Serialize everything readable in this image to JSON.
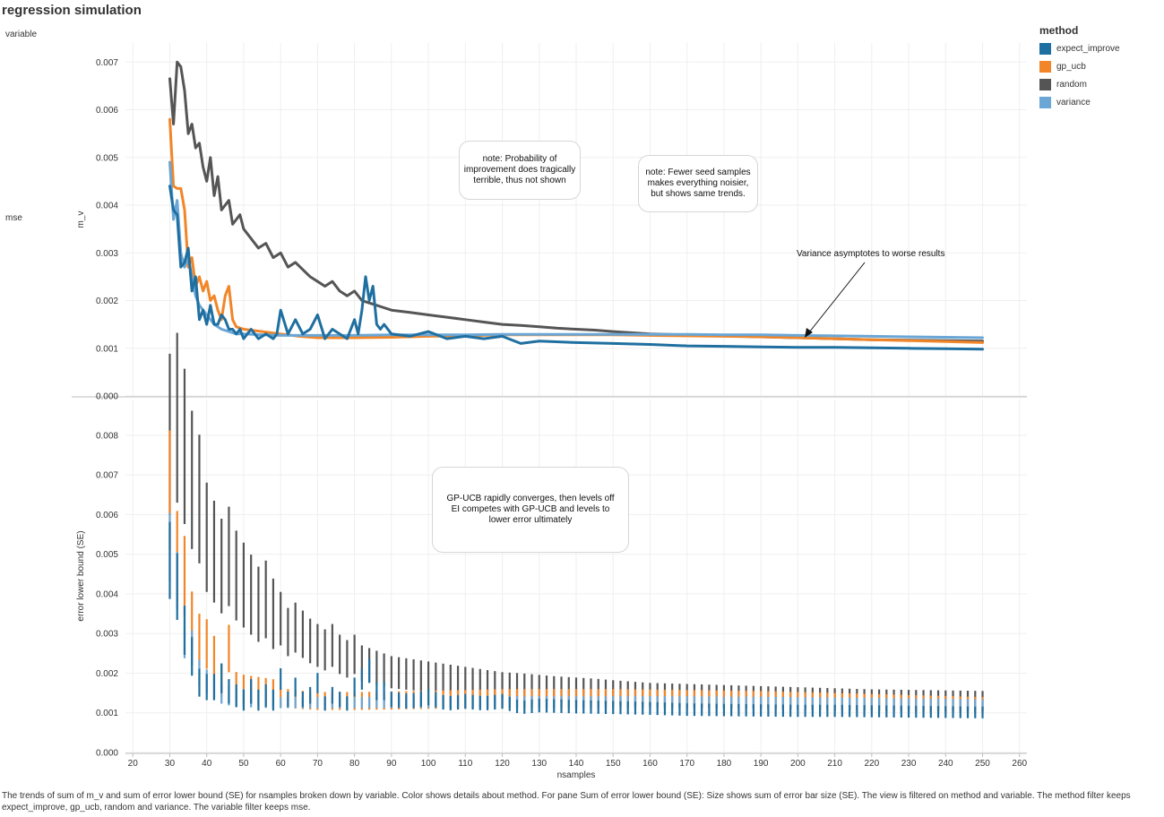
{
  "title": "regression simulation",
  "column_header": "variable",
  "row_label": "mse",
  "legend": {
    "title": "method",
    "items": [
      {
        "label": "expect_improve",
        "color": "#1f6fa0"
      },
      {
        "label": "gp_ucb",
        "color": "#f28527"
      },
      {
        "label": "random",
        "color": "#555555"
      },
      {
        "label": "variance",
        "color": "#6aa6d6"
      }
    ]
  },
  "caption": "The trends of sum of m_v and sum of error lower bound (SE) for nsamples broken down by variable.  Color shows details about method.  For pane Sum of error lower bound (SE):  Size shows sum of error bar size (SE). The view is filtered on method and variable. The method filter keeps expect_improve, gp_ucb, random and variance. The variable filter keeps mse.",
  "annotations": {
    "note1": "note: Probability of improvement does tragically terrible, thus not shown",
    "note2": "note: Fewer seed samples makes everything noisier, but shows same trends.",
    "note3": "Variance asymptotes to worse results",
    "note4": "GP-UCB rapidly converges, then levels off EI competes with GP-UCB and levels to lower error ultimately"
  },
  "chart_data": [
    {
      "type": "line",
      "ylabel": "m_v",
      "xlabel": "",
      "xlim": [
        18,
        262
      ],
      "ylim": [
        0,
        0.0074
      ],
      "grid": true,
      "x_ticks": [
        20,
        30,
        40,
        50,
        60,
        70,
        80,
        90,
        100,
        110,
        120,
        130,
        140,
        150,
        160,
        170,
        180,
        190,
        200,
        210,
        220,
        230,
        240,
        250,
        260
      ],
      "y_ticks": [
        "0.000",
        "0.001",
        "0.002",
        "0.003",
        "0.004",
        "0.005",
        "0.006",
        "0.007"
      ],
      "y_tick_values": [
        0,
        0.001,
        0.002,
        0.003,
        0.004,
        0.005,
        0.006,
        0.007
      ],
      "series": [
        {
          "name": "random",
          "color": "#555555",
          "x": [
            30,
            31,
            32,
            33,
            34,
            35,
            36,
            37,
            38,
            39,
            40,
            41,
            42,
            43,
            44,
            45,
            46,
            47,
            48,
            49,
            50,
            52,
            54,
            56,
            58,
            60,
            62,
            64,
            66,
            68,
            70,
            72,
            74,
            76,
            78,
            80,
            82,
            84,
            86,
            88,
            90,
            95,
            100,
            105,
            110,
            115,
            120,
            125,
            130,
            135,
            140,
            145,
            150,
            160,
            170,
            180,
            190,
            200,
            210,
            220,
            230,
            240,
            250
          ],
          "y": [
            0.00665,
            0.0057,
            0.007,
            0.0069,
            0.0064,
            0.0055,
            0.0057,
            0.0052,
            0.0053,
            0.0048,
            0.0045,
            0.005,
            0.0042,
            0.0046,
            0.0039,
            0.004,
            0.0041,
            0.0036,
            0.0037,
            0.0038,
            0.0035,
            0.0033,
            0.0031,
            0.0032,
            0.0029,
            0.003,
            0.0027,
            0.0028,
            0.00265,
            0.0025,
            0.0024,
            0.0023,
            0.0024,
            0.0022,
            0.0021,
            0.0022,
            0.002,
            0.00195,
            0.0019,
            0.00185,
            0.0018,
            0.00175,
            0.0017,
            0.00165,
            0.0016,
            0.00155,
            0.0015,
            0.00148,
            0.00145,
            0.00142,
            0.0014,
            0.00138,
            0.00135,
            0.0013,
            0.00128,
            0.00126,
            0.00124,
            0.00122,
            0.0012,
            0.00118,
            0.00117,
            0.00116,
            0.00115
          ]
        },
        {
          "name": "gp_ucb",
          "color": "#f28527",
          "x": [
            30,
            31,
            32,
            33,
            34,
            35,
            36,
            37,
            38,
            39,
            40,
            41,
            42,
            43,
            44,
            45,
            46,
            47,
            48,
            50,
            55,
            60,
            65,
            70,
            80,
            90,
            100,
            110,
            120,
            130,
            140,
            150,
            160,
            170,
            180,
            190,
            200,
            210,
            220,
            230,
            240,
            250
          ],
          "y": [
            0.0058,
            0.0044,
            0.00435,
            0.00435,
            0.0039,
            0.0027,
            0.0029,
            0.0023,
            0.0025,
            0.0022,
            0.0024,
            0.002,
            0.0021,
            0.0018,
            0.0016,
            0.0021,
            0.0023,
            0.0016,
            0.00145,
            0.0014,
            0.00135,
            0.0013,
            0.00125,
            0.00122,
            0.00122,
            0.00123,
            0.00125,
            0.00126,
            0.00128,
            0.00128,
            0.00128,
            0.00128,
            0.00127,
            0.00126,
            0.00125,
            0.00124,
            0.00122,
            0.0012,
            0.00118,
            0.00116,
            0.00114,
            0.00112
          ]
        },
        {
          "name": "variance",
          "color": "#6aa6d6",
          "x": [
            30,
            31,
            32,
            33,
            34,
            35,
            36,
            37,
            38,
            39,
            40,
            42,
            44,
            46,
            48,
            50,
            55,
            60,
            70,
            80,
            90,
            100,
            110,
            120,
            130,
            140,
            150,
            160,
            170,
            180,
            190,
            200,
            210,
            220,
            230,
            240,
            250
          ],
          "y": [
            0.0049,
            0.0037,
            0.0041,
            0.003,
            0.0027,
            0.0029,
            0.0025,
            0.0021,
            0.0019,
            0.0018,
            0.0017,
            0.0015,
            0.0014,
            0.00135,
            0.0013,
            0.0013,
            0.00128,
            0.00127,
            0.00127,
            0.00127,
            0.00128,
            0.00128,
            0.00128,
            0.00129,
            0.00129,
            0.00129,
            0.00129,
            0.00129,
            0.00129,
            0.00128,
            0.00128,
            0.00127,
            0.00126,
            0.00125,
            0.00124,
            0.00123,
            0.00122
          ]
        },
        {
          "name": "expect_improve",
          "color": "#1f6fa0",
          "x": [
            30,
            31,
            32,
            33,
            34,
            35,
            36,
            37,
            38,
            39,
            40,
            41,
            42,
            43,
            44,
            45,
            46,
            47,
            48,
            49,
            50,
            52,
            54,
            56,
            58,
            59,
            60,
            62,
            64,
            66,
            68,
            70,
            72,
            74,
            76,
            78,
            80,
            81,
            82,
            83,
            84,
            85,
            86,
            87,
            88,
            90,
            95,
            100,
            105,
            110,
            115,
            120,
            125,
            130,
            140,
            150,
            160,
            170,
            180,
            190,
            200,
            210,
            220,
            230,
            240,
            250
          ],
          "y": [
            0.0044,
            0.0039,
            0.0038,
            0.0027,
            0.0028,
            0.0031,
            0.0022,
            0.0025,
            0.0016,
            0.0018,
            0.0015,
            0.0019,
            0.0015,
            0.0015,
            0.0017,
            0.0016,
            0.0014,
            0.0014,
            0.0013,
            0.0014,
            0.0012,
            0.0014,
            0.0012,
            0.0013,
            0.0012,
            0.0013,
            0.0018,
            0.0013,
            0.0016,
            0.0013,
            0.0014,
            0.0017,
            0.0012,
            0.0014,
            0.0013,
            0.0012,
            0.0016,
            0.0013,
            0.0018,
            0.0025,
            0.002,
            0.0023,
            0.0015,
            0.0014,
            0.0015,
            0.0013,
            0.00125,
            0.00135,
            0.0012,
            0.00125,
            0.0012,
            0.00125,
            0.0011,
            0.00115,
            0.00112,
            0.0011,
            0.00108,
            0.00105,
            0.00104,
            0.00103,
            0.00102,
            0.00102,
            0.00101,
            0.001,
            0.00099,
            0.00098
          ]
        }
      ]
    },
    {
      "type": "error_bar",
      "ylabel": "error lower bound (SE)",
      "xlabel": "nsamples",
      "xlim": [
        18,
        262
      ],
      "ylim": [
        0,
        0.0089
      ],
      "grid": true,
      "x_ticks": [
        20,
        30,
        40,
        50,
        60,
        70,
        80,
        90,
        100,
        110,
        120,
        130,
        140,
        150,
        160,
        170,
        180,
        190,
        200,
        210,
        220,
        230,
        240,
        250,
        260
      ],
      "y_ticks": [
        "0.000",
        "0.001",
        "0.002",
        "0.003",
        "0.004",
        "0.005",
        "0.006",
        "0.007",
        "0.008"
      ],
      "y_tick_values": [
        0,
        0.001,
        0.002,
        0.003,
        0.004,
        0.005,
        0.006,
        0.007,
        0.008
      ],
      "note": "bar low = error lower bound (SE); bar length = error bar size (SE)"
    }
  ]
}
